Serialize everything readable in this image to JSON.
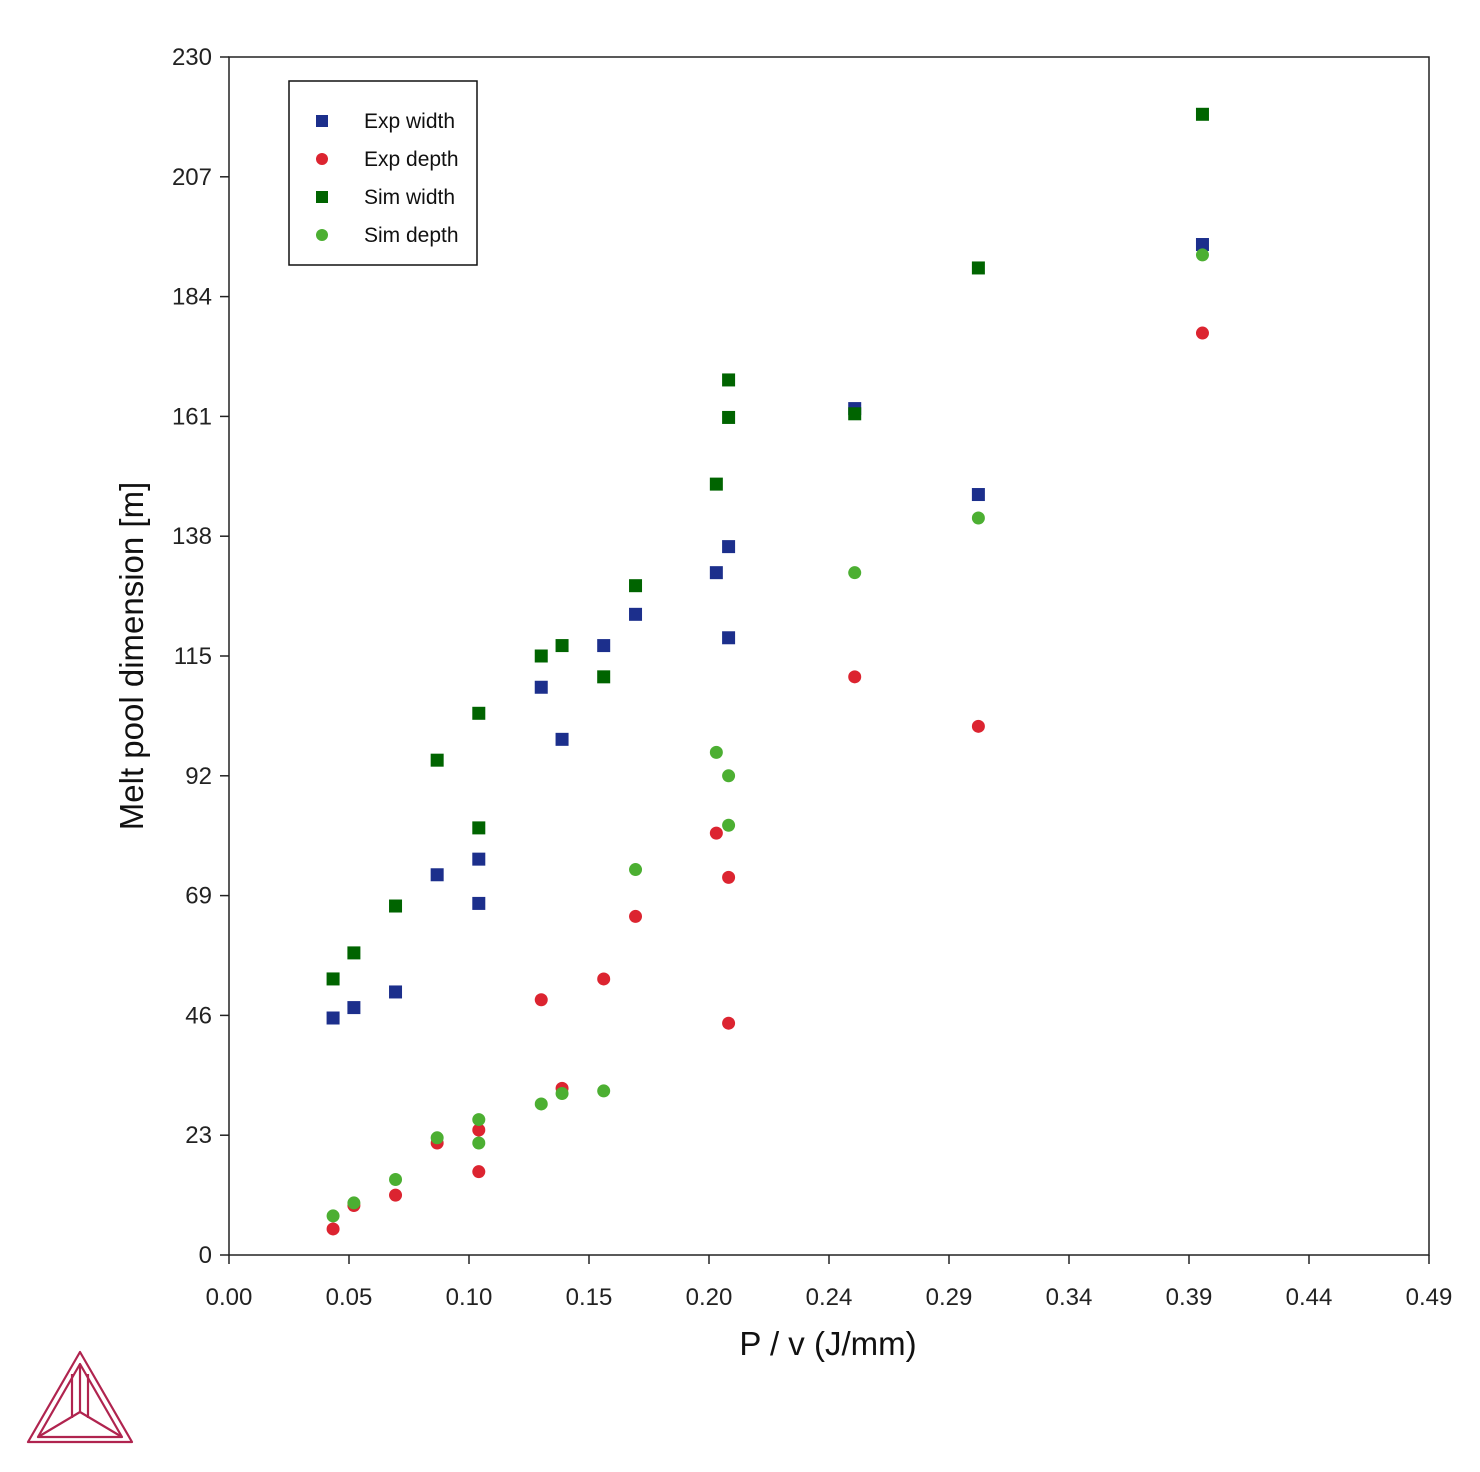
{
  "chart_data": {
    "type": "scatter",
    "xlabel": "P / v (J/mm)",
    "ylabel": "Melt pool dimension [m]",
    "xlim": [
      0,
      0.49
    ],
    "ylim": [
      0,
      230
    ],
    "x_ticks": [
      "0.00",
      "0.05",
      "0.10",
      "0.15",
      "0.20",
      "0.24",
      "0.29",
      "0.34",
      "0.39",
      "0.44",
      "0.49"
    ],
    "y_ticks": [
      "0",
      "23",
      "46",
      "69",
      "92",
      "115",
      "138",
      "161",
      "184",
      "207",
      "230"
    ],
    "grid": false,
    "legend_position": "top-left",
    "series": [
      {
        "name": "Exp width",
        "marker": "square",
        "color": "#1c2f8c",
        "points": [
          [
            0.0425,
            45.5
          ],
          [
            0.051,
            47.5
          ],
          [
            0.068,
            50.5
          ],
          [
            0.085,
            73.0
          ],
          [
            0.102,
            76.0
          ],
          [
            0.102,
            67.5
          ],
          [
            0.1275,
            109.0
          ],
          [
            0.136,
            99.0
          ],
          [
            0.153,
            117.0
          ],
          [
            0.166,
            123.0
          ],
          [
            0.199,
            131.0
          ],
          [
            0.204,
            136.0
          ],
          [
            0.204,
            118.5
          ],
          [
            0.2555,
            162.5
          ],
          [
            0.306,
            146.0
          ],
          [
            0.3975,
            194.0
          ]
        ]
      },
      {
        "name": "Exp depth",
        "marker": "circle",
        "color": "#dc2430",
        "points": [
          [
            0.0425,
            5.0
          ],
          [
            0.051,
            9.5
          ],
          [
            0.068,
            11.5
          ],
          [
            0.085,
            21.5
          ],
          [
            0.102,
            24.0
          ],
          [
            0.102,
            16.0
          ],
          [
            0.1275,
            49.0
          ],
          [
            0.136,
            32.0
          ],
          [
            0.153,
            53.0
          ],
          [
            0.166,
            65.0
          ],
          [
            0.199,
            81.0
          ],
          [
            0.204,
            72.5
          ],
          [
            0.204,
            44.5
          ],
          [
            0.2555,
            111.0
          ],
          [
            0.306,
            101.5
          ],
          [
            0.3975,
            177.0
          ]
        ]
      },
      {
        "name": "Sim width",
        "marker": "square",
        "color": "#006400",
        "points": [
          [
            0.0425,
            53.0
          ],
          [
            0.051,
            58.0
          ],
          [
            0.068,
            67.0
          ],
          [
            0.085,
            95.0
          ],
          [
            0.102,
            104.0
          ],
          [
            0.102,
            82.0
          ],
          [
            0.1275,
            115.0
          ],
          [
            0.136,
            117.0
          ],
          [
            0.153,
            111.0
          ],
          [
            0.166,
            128.5
          ],
          [
            0.199,
            148.0
          ],
          [
            0.204,
            168.0
          ],
          [
            0.204,
            160.8
          ],
          [
            0.2555,
            161.5
          ],
          [
            0.306,
            189.5
          ],
          [
            0.3975,
            219.0
          ]
        ]
      },
      {
        "name": "Sim depth",
        "marker": "circle",
        "color": "#4caf32",
        "points": [
          [
            0.0425,
            7.5
          ],
          [
            0.051,
            10.0
          ],
          [
            0.068,
            14.5
          ],
          [
            0.085,
            22.5
          ],
          [
            0.102,
            26.0
          ],
          [
            0.102,
            21.5
          ],
          [
            0.1275,
            29.0
          ],
          [
            0.136,
            31.0
          ],
          [
            0.153,
            31.5
          ],
          [
            0.166,
            74.0
          ],
          [
            0.199,
            96.5
          ],
          [
            0.204,
            92.0
          ],
          [
            0.204,
            82.5
          ],
          [
            0.2555,
            131.0
          ],
          [
            0.306,
            141.5
          ],
          [
            0.3975,
            192.0
          ]
        ]
      }
    ]
  },
  "colors": {
    "axis": "#222222",
    "logo": "#b0244f"
  },
  "logo_icon": "thermo-calc-triangle-logo-icon"
}
